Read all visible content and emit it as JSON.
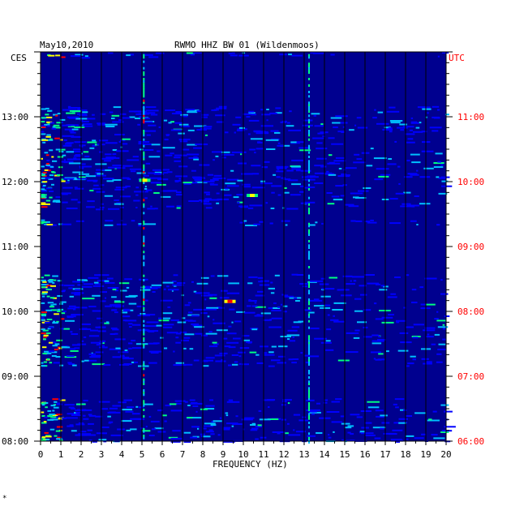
{
  "chart_data": {
    "type": "heatmap",
    "title": "RWMO HHZ BW 01 (Wildenmoos)",
    "date": "May10,2010",
    "left_timezone": "CES",
    "right_timezone": "UTC",
    "xlabel": "FREQUENCY (HZ)",
    "xlim": [
      0,
      20
    ],
    "x_ticks": [
      "0",
      "1",
      "2",
      "3",
      "4",
      "5",
      "6",
      "7",
      "8",
      "9",
      "10",
      "11",
      "12",
      "13",
      "14",
      "15",
      "16",
      "17",
      "18",
      "19",
      "20"
    ],
    "y_ticks_local": [
      "08:00",
      "09:00",
      "10:00",
      "11:00",
      "12:00",
      "13:00"
    ],
    "y_ticks_utc": [
      "06:00",
      "07:00",
      "08:00",
      "09:00",
      "10:00",
      "11:00"
    ],
    "time_range_local": [
      "08:00",
      "14:00"
    ],
    "grid": "vertical lines at each integer Hz",
    "colormap": [
      "#000080",
      "#0000ff",
      "#00c0ff",
      "#00ff80",
      "#ffff00",
      "#ff0000"
    ],
    "quiet_periods_local": [
      [
        "13:10",
        "13:55"
      ],
      [
        "11:25",
        "11:35"
      ],
      [
        "10:35",
        "11:20"
      ],
      [
        "08:40",
        "09:10"
      ]
    ],
    "persistent_lines_hz": [
      5.05,
      13.2
    ],
    "hotspots": [
      {
        "time": "10:10",
        "freq_hz": 9.3,
        "level": "high"
      },
      {
        "time": "11:48",
        "freq_hz": 10.4,
        "level": "medium"
      },
      {
        "time": "12:02",
        "freq_hz": 5.1,
        "level": "medium"
      }
    ]
  },
  "colors": {
    "background": "#00008f",
    "grid": "#000000",
    "utc_labels": "#ff0000"
  },
  "footer_mark": "*"
}
